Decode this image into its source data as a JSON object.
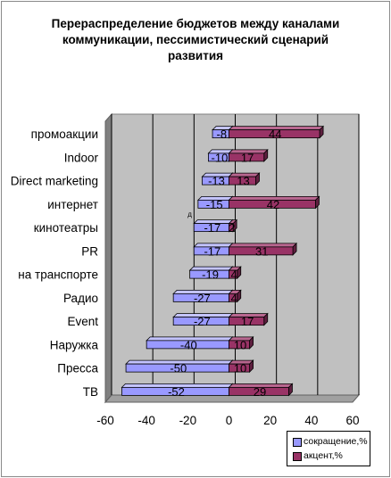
{
  "chart_data": {
    "type": "bar",
    "orientation": "horizontal",
    "title": "Перераспределение бюджетов между каналами коммуникации, пессимистический сценарий развития",
    "title_lines": [
      "Перераспределение бюджетов между каналами",
      "коммуникации, пессимистический сценарий",
      "развития"
    ],
    "categories": [
      "промоакции",
      "Indoor",
      "Direct marketing",
      "интернет",
      "кинотеатры",
      "PR",
      "на транспорте",
      "Радио",
      "Event",
      "Наружка",
      "Пресса",
      "ТВ"
    ],
    "series": [
      {
        "name": "сокращение,%",
        "color": "#9999ff",
        "values": [
          -8,
          -10,
          -13,
          -15,
          -17,
          -17,
          -19,
          -27,
          -27,
          -40,
          -50,
          -52
        ]
      },
      {
        "name": "акцент,%",
        "color": "#993366",
        "values": [
          44,
          17,
          13,
          42,
          2,
          31,
          4,
          4,
          17,
          10,
          10,
          29
        ]
      }
    ],
    "value_labels": [
      [
        "-8",
        "-10",
        "-13",
        "-15",
        "-17",
        "-17",
        "-19",
        "-27",
        "-27",
        "-40",
        "-50",
        "-52"
      ],
      [
        "44",
        "17",
        "13",
        "42",
        "2",
        "31",
        "4",
        "4",
        "17",
        "10",
        "10",
        "29"
      ]
    ],
    "xlim": [
      -60,
      60
    ],
    "xticks": [
      -60,
      -40,
      -20,
      0,
      20,
      40,
      60
    ],
    "xtick_labels": [
      "-60",
      "-40",
      "-20",
      "0",
      "20",
      "40",
      "60"
    ],
    "stray_label": "д",
    "grid": true,
    "legend_position": "bottom-right",
    "plot_wall_color": "#c0c0c0"
  }
}
